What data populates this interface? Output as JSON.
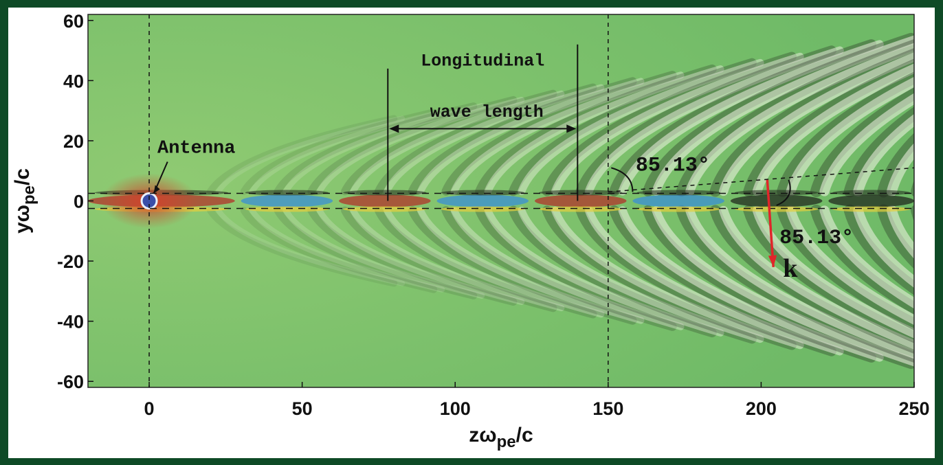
{
  "chart_data": {
    "type": "heatmap",
    "title": "",
    "xlabel": {
      "main": "zω",
      "sub": "pe",
      "tail": "/c"
    },
    "ylabel": {
      "main": "yω",
      "sub": "pe",
      "tail": "/c"
    },
    "xlim": [
      -20,
      250
    ],
    "ylim": [
      -62,
      62
    ],
    "x_ticks": [
      0,
      50,
      100,
      150,
      200,
      250
    ],
    "y_ticks": [
      60,
      40,
      20,
      0,
      -20,
      -40,
      -60
    ],
    "antenna": {
      "label": "Antenna",
      "z": 0,
      "y": 0
    },
    "wavelength_annotation": {
      "line1": "Longitudinal",
      "line2": "wave length",
      "z_start": 78,
      "z_end": 140
    },
    "angle_annotations": [
      "85.13°",
      "85.13°"
    ],
    "k_vector": {
      "label": "k",
      "z_start": 202,
      "y_start": 7,
      "z_end": 204,
      "y_end": -22
    },
    "dashed_vertical_lines_z": [
      0,
      150
    ],
    "dashed_horizontal_lines_y": [
      2.5,
      -2.5
    ],
    "colormap": {
      "background": "#7ec46d",
      "positive": "#f4f4e8",
      "negative": "#222a1f",
      "accent_red": "#b2332a",
      "accent_blue": "#3a8fd6",
      "accent_yellow": "#e6cf3d"
    }
  }
}
